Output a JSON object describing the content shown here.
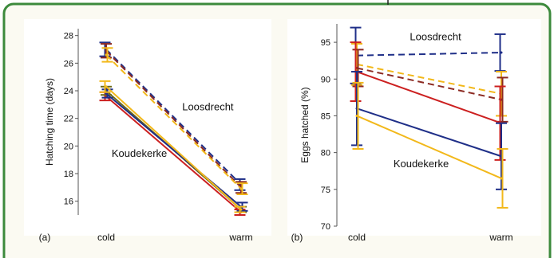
{
  "frame": {
    "border_color": "#3c8a3c",
    "background": "#fbfaf2",
    "panel_background": "#ffffff"
  },
  "colors": {
    "red": "#cc2020",
    "blue": "#1f2f88",
    "yellow": "#f2b81a",
    "olive": "#6d6a1a",
    "darkred": "#8c2a22"
  },
  "chart_data": [
    {
      "type": "line",
      "panel_label": "(a)",
      "ylabel": "Hatching time (days)",
      "categories": [
        "cold",
        "warm"
      ],
      "ylim": [
        15,
        28.5
      ],
      "yticks": [
        16,
        18,
        20,
        22,
        24,
        26,
        28
      ],
      "grid": false,
      "annotations": [
        {
          "text": "Loosdrecht",
          "x": 1.5,
          "y": 22.6
        },
        {
          "text": "Koudekerke",
          "x": 0.35,
          "y": 19.2
        }
      ],
      "series": [
        {
          "color": "#1f2f88",
          "dash": true,
          "values": [
            27.0,
            17.2
          ],
          "err": [
            0.5,
            0.4
          ]
        },
        {
          "color": "#8c2a22",
          "dash": true,
          "values": [
            26.9,
            17.0
          ],
          "err": [
            0.5,
            0.4
          ]
        },
        {
          "color": "#f2b81a",
          "dash": true,
          "values": [
            26.6,
            16.9
          ],
          "err": [
            0.5,
            0.4
          ]
        },
        {
          "color": "#cc2020",
          "dash": false,
          "values": [
            23.6,
            15.2
          ],
          "err": [
            0.3,
            0.2
          ]
        },
        {
          "color": "#6d6a1a",
          "dash": false,
          "values": [
            24.0,
            15.4
          ],
          "err": [
            0.3,
            0.2
          ]
        },
        {
          "color": "#1f2f88",
          "dash": false,
          "values": [
            23.8,
            15.6
          ],
          "err": [
            0.3,
            0.3
          ]
        },
        {
          "color": "#f2b81a",
          "dash": false,
          "values": [
            24.3,
            15.4
          ],
          "err": [
            0.4,
            0.2
          ]
        }
      ]
    },
    {
      "type": "line",
      "panel_label": "(b)",
      "ylabel": "Eggs hatched (%)",
      "categories": [
        "cold",
        "warm"
      ],
      "ylim": [
        70,
        97.5
      ],
      "yticks": [
        70,
        75,
        80,
        85,
        90,
        95
      ],
      "grid": false,
      "annotations": [
        {
          "text": "Loosdrecht",
          "x": 1.05,
          "y": 95.3
        },
        {
          "text": "Koudekerke",
          "x": 0.8,
          "y": 78.0
        }
      ],
      "series": [
        {
          "color": "#1f2f88",
          "dash": true,
          "values": [
            93.2,
            93.6
          ],
          "err": [
            3.8,
            2.5
          ]
        },
        {
          "color": "#f2b81a",
          "dash": true,
          "values": [
            92.0,
            88.0
          ],
          "err": [
            2.8,
            3.0
          ]
        },
        {
          "color": "#8c2a22",
          "dash": true,
          "values": [
            91.5,
            87.2
          ],
          "err": [
            2.5,
            3.0
          ]
        },
        {
          "color": "#cc2020",
          "dash": false,
          "values": [
            91.0,
            84.0
          ],
          "err": [
            4.0,
            5.0
          ]
        },
        {
          "color": "#1f2f88",
          "dash": false,
          "values": [
            86.0,
            79.5
          ],
          "err": [
            5.0,
            4.5
          ]
        },
        {
          "color": "#f2b81a",
          "dash": false,
          "values": [
            85.0,
            76.5
          ],
          "err": [
            4.5,
            4.0
          ]
        }
      ]
    }
  ]
}
